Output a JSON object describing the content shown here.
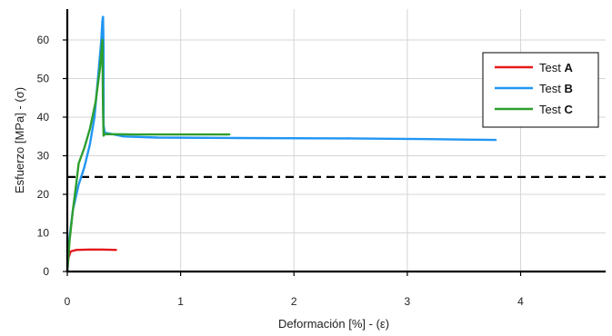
{
  "chart_data": {
    "type": "line",
    "xlabel": "Deformación [%] - (ε)",
    "ylabel": "Esfuerzo [MPa] - (σ)",
    "xlim": [
      0,
      4.75
    ],
    "ylim": [
      0,
      68
    ],
    "xticks": [
      0,
      1,
      2,
      3,
      4
    ],
    "yticks": [
      0,
      10,
      20,
      30,
      40,
      50,
      60
    ],
    "grid": true,
    "legend_position": "top-right",
    "reference_line": {
      "y": 24.5,
      "style": "dashed",
      "color": "#000000"
    },
    "series": [
      {
        "name": "Test A",
        "label_prefix": "Test ",
        "label_bold": "A",
        "color": "#e41a1c",
        "points": [
          [
            0.0,
            0.0
          ],
          [
            0.01,
            3.5
          ],
          [
            0.03,
            5.2
          ],
          [
            0.08,
            5.6
          ],
          [
            0.2,
            5.7
          ],
          [
            0.3,
            5.7
          ],
          [
            0.43,
            5.6
          ]
        ]
      },
      {
        "name": "Test B",
        "label_prefix": "Test ",
        "label_bold": "B",
        "color": "#2196f3",
        "points": [
          [
            0.0,
            0.0
          ],
          [
            0.02,
            9.0
          ],
          [
            0.05,
            16.0
          ],
          [
            0.1,
            22.5
          ],
          [
            0.15,
            27.0
          ],
          [
            0.2,
            33.0
          ],
          [
            0.24,
            40.0
          ],
          [
            0.27,
            50.0
          ],
          [
            0.3,
            60.0
          ],
          [
            0.31,
            65.0
          ],
          [
            0.315,
            66.0
          ],
          [
            0.32,
            58.0
          ],
          [
            0.32,
            38.0
          ],
          [
            0.33,
            36.0
          ],
          [
            0.5,
            35.0
          ],
          [
            0.8,
            34.7
          ],
          [
            1.5,
            34.6
          ],
          [
            2.5,
            34.5
          ],
          [
            3.2,
            34.3
          ],
          [
            3.78,
            34.1
          ]
        ]
      },
      {
        "name": "Test C",
        "label_prefix": "Test ",
        "label_bold": "C",
        "color": "#2e9e2e",
        "points": [
          [
            0.0,
            0.0
          ],
          [
            0.02,
            8.0
          ],
          [
            0.05,
            16.0
          ],
          [
            0.08,
            23.0
          ],
          [
            0.1,
            28.0
          ],
          [
            0.15,
            32.0
          ],
          [
            0.2,
            37.0
          ],
          [
            0.25,
            44.0
          ],
          [
            0.29,
            53.0
          ],
          [
            0.31,
            60.0
          ],
          [
            0.315,
            42.0
          ],
          [
            0.32,
            35.2
          ],
          [
            0.33,
            35.6
          ],
          [
            0.6,
            35.5
          ],
          [
            1.0,
            35.5
          ],
          [
            1.43,
            35.5
          ]
        ]
      }
    ]
  }
}
